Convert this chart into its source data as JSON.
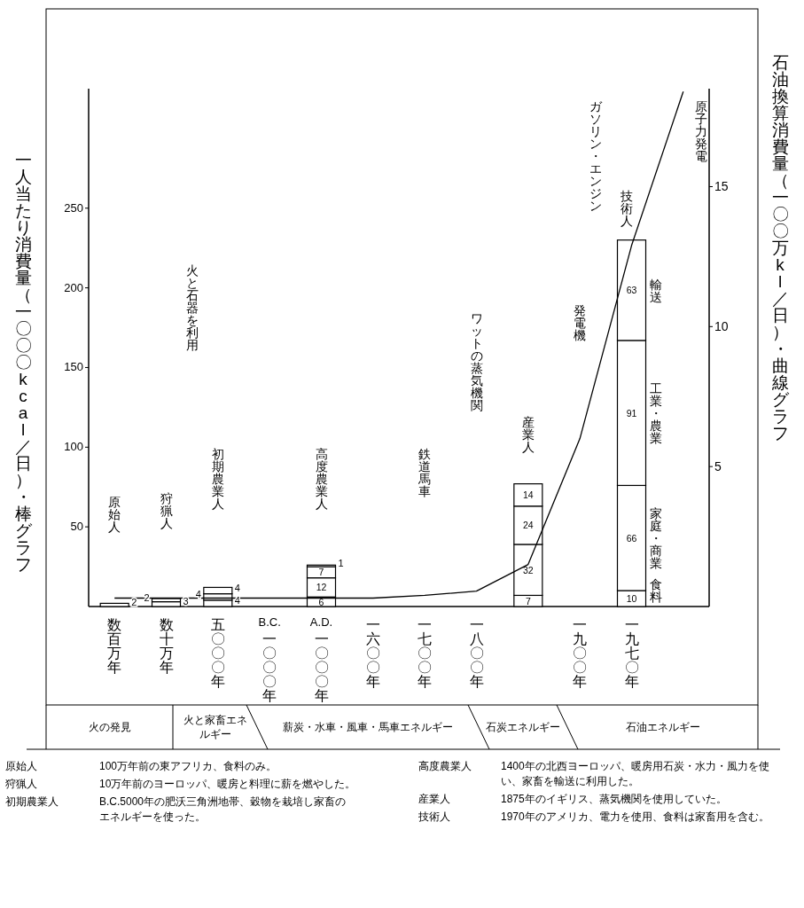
{
  "chart_data": {
    "type": "bar",
    "stacked": true,
    "ylabel": "一人当たり消費量（一〇〇〇kcal／日）・棒グラフ",
    "y2label": "石油換算消費量（一〇〇万kl／日）・曲線グラフ",
    "categories": [
      "数百万年",
      "数十万年",
      "五〇〇〇年",
      "B.C. 一〇〇〇年",
      "A.D. 一〇〇〇年",
      "一六〇〇年",
      "一七〇〇年",
      "一八〇〇年",
      null,
      "一九〇〇年",
      "一九七〇年",
      null
    ],
    "series": [
      {
        "name": "食料",
        "color": "#ffffff",
        "values": [
          2,
          3,
          4,
          null,
          6,
          null,
          null,
          null,
          7,
          null,
          10,
          null
        ],
        "value_labels": [
          "2",
          "3",
          "4",
          null,
          "6",
          null,
          null,
          null,
          "7",
          null,
          "10",
          null
        ]
      },
      {
        "name": "家庭・商業",
        "color": "#ffffff",
        "values": [
          null,
          2,
          4,
          null,
          12,
          null,
          null,
          null,
          32,
          null,
          66,
          null
        ],
        "value_labels": [
          null,
          "2",
          "4",
          null,
          "12",
          null,
          null,
          null,
          "32",
          null,
          "66",
          null
        ]
      },
      {
        "name": "工業・農業",
        "color": "#ffffff",
        "values": [
          null,
          null,
          4,
          null,
          7,
          null,
          null,
          null,
          24,
          null,
          91,
          null
        ],
        "value_labels": [
          null,
          null,
          "4",
          null,
          "7",
          null,
          null,
          null,
          "24",
          null,
          "91",
          null
        ]
      },
      {
        "name": "輸送",
        "color": "#ffffff",
        "values": [
          null,
          null,
          null,
          null,
          1,
          null,
          null,
          null,
          14,
          null,
          63,
          null
        ],
        "value_labels": [
          null,
          null,
          null,
          null,
          "1",
          null,
          null,
          null,
          "14",
          null,
          "63",
          null
        ]
      },
      {
        "type": "line",
        "axis": "y2",
        "color": "#000000",
        "values": [
          0.3,
          0.3,
          0.3,
          0.3,
          0.3,
          0.3,
          0.4,
          0.55,
          1.5,
          6.0,
          12.9,
          18.4
        ]
      }
    ],
    "ylim": [
      0,
      325
    ],
    "yticks": [
      50,
      100,
      150,
      200,
      250
    ],
    "y2lim": [
      0,
      18.5
    ],
    "y2ticks": [
      5,
      10,
      15
    ],
    "annotations": [
      "原始人",
      "狩猟人",
      "初期農業人",
      "高度農業人",
      "産業人",
      "技術人",
      "火と石器を利用",
      "鉄道馬車",
      "ワットの蒸気機関",
      "発電機",
      "ガソリン・エンジン",
      "原子力発電",
      "火の発見",
      "火と家畜エネルギー",
      "薪炭・水車・風車・馬車エネルギー",
      "石炭エネルギー",
      "石油エネルギー",
      "原始人",
      "100万年前の東アフリカ、食料のみ。",
      "狩猟人",
      "10万年前のヨーロッパ、暖房と料理に薪を燃やした。",
      "初期農業人",
      "B.C.5000年の肥沃三角洲地帯、穀物を栽培し家畜のエネルギーを使った。",
      "高度農業人",
      "1400年の北西ヨーロッパ、暖房用石炭・水力・風力を使い、家畜を輸送に利用した。",
      "産業人",
      "1875年のイギリス、蒸気機関を使用していた。",
      "技術人",
      "1970年のアメリカ、電力を使用、食料は家畜用を含む。"
    ]
  }
}
